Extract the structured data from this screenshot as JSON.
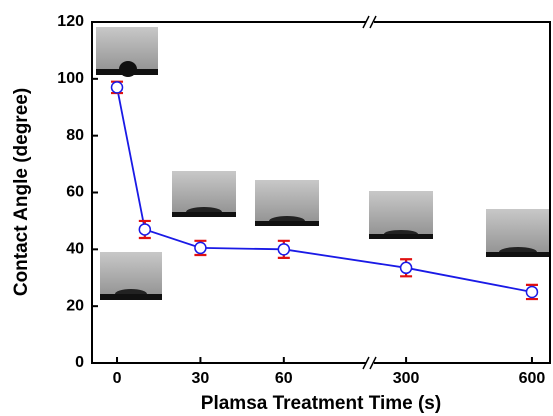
{
  "chart_data": {
    "type": "line",
    "x_label": "Plamsa Treatment Time (s)",
    "y_label": "Contact Angle (degree)",
    "x": [
      0,
      10,
      30,
      60,
      300,
      600
    ],
    "series": [
      {
        "color": "#1a1ae6",
        "values": [
          97,
          47,
          40.5,
          40,
          33.5,
          25
        ],
        "errors": [
          2,
          3,
          2.5,
          3,
          3,
          2.5
        ],
        "error_color": "#e01010"
      }
    ],
    "xlim": [
      -9,
      643
    ],
    "xbreak": [
      91,
      214
    ],
    "xticks": [
      0,
      30,
      60,
      300,
      600
    ],
    "ylim": [
      0,
      120
    ],
    "yticks": [
      0,
      20,
      40,
      60,
      80,
      100,
      120
    ]
  }
}
